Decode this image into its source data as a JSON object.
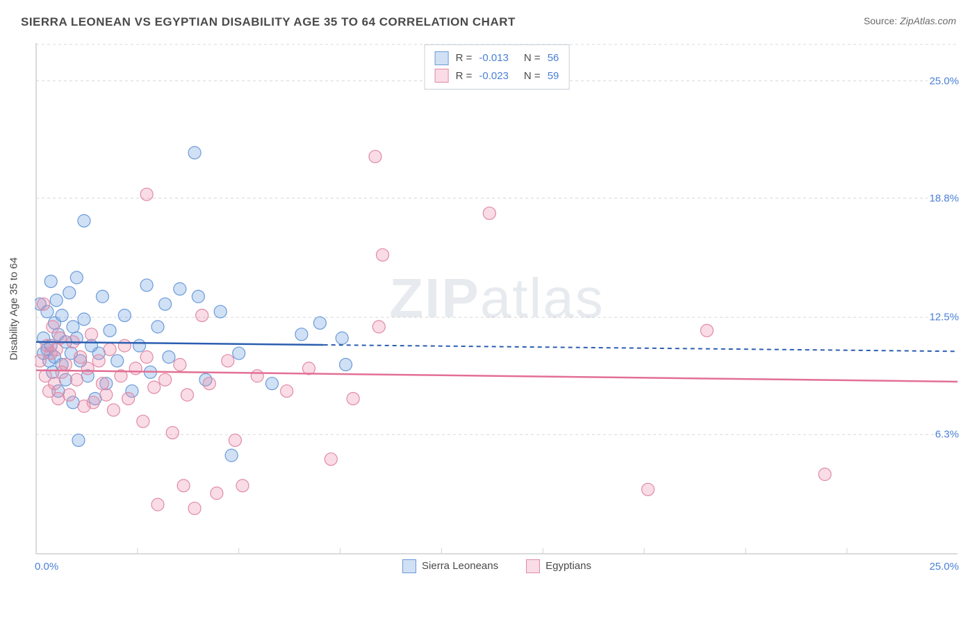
{
  "title": "SIERRA LEONEAN VS EGYPTIAN DISABILITY AGE 35 TO 64 CORRELATION CHART",
  "source_label": "Source:",
  "source_value": "ZipAtlas.com",
  "watermark": {
    "bold": "ZIP",
    "rest": "atlas"
  },
  "chart": {
    "type": "scatter",
    "ylabel": "Disability Age 35 to 64",
    "xlim": [
      0,
      25
    ],
    "ylim": [
      0,
      27
    ],
    "x_tick_labels": {
      "min": "0.0%",
      "max": "25.0%"
    },
    "y_ticks": [
      {
        "v": 6.3,
        "label": "6.3%"
      },
      {
        "v": 12.5,
        "label": "12.5%"
      },
      {
        "v": 18.8,
        "label": "18.8%"
      },
      {
        "v": 25.0,
        "label": "25.0%"
      }
    ],
    "x_minor_ticks": [
      0,
      2.75,
      5.5,
      8.25,
      11.0,
      13.75,
      16.5,
      19.25,
      22.0
    ],
    "background_color": "#ffffff",
    "grid_color": "#d8d8d8",
    "axis_color": "#cfcfcf",
    "marker_radius": 9,
    "marker_stroke_width": 1.2,
    "series": [
      {
        "id": "sierra_leoneans",
        "label": "Sierra Leoneans",
        "fill": "rgba(120,165,225,0.35)",
        "stroke": "#6a9ad8",
        "line_color": "#2a5db0",
        "R": "-0.013",
        "N": "56",
        "trend": {
          "y_at_xmin": 11.2,
          "y_at_xmax": 10.7,
          "solid_until_x": 7.8
        },
        "points": [
          [
            0.1,
            13.2
          ],
          [
            0.2,
            10.6
          ],
          [
            0.2,
            11.4
          ],
          [
            0.3,
            10.8
          ],
          [
            0.3,
            12.8
          ],
          [
            0.35,
            10.2
          ],
          [
            0.4,
            11.0
          ],
          [
            0.4,
            14.4
          ],
          [
            0.45,
            9.6
          ],
          [
            0.5,
            10.4
          ],
          [
            0.5,
            12.2
          ],
          [
            0.55,
            13.4
          ],
          [
            0.6,
            8.6
          ],
          [
            0.6,
            11.6
          ],
          [
            0.7,
            10.0
          ],
          [
            0.7,
            12.6
          ],
          [
            0.8,
            9.2
          ],
          [
            0.8,
            11.2
          ],
          [
            0.9,
            13.8
          ],
          [
            0.95,
            10.6
          ],
          [
            1.0,
            8.0
          ],
          [
            1.0,
            12.0
          ],
          [
            1.1,
            11.4
          ],
          [
            1.1,
            14.6
          ],
          [
            1.15,
            6.0
          ],
          [
            1.2,
            10.2
          ],
          [
            1.3,
            17.6
          ],
          [
            1.3,
            12.4
          ],
          [
            1.4,
            9.4
          ],
          [
            1.5,
            11.0
          ],
          [
            1.6,
            8.2
          ],
          [
            1.7,
            10.6
          ],
          [
            1.8,
            13.6
          ],
          [
            1.9,
            9.0
          ],
          [
            2.0,
            11.8
          ],
          [
            2.2,
            10.2
          ],
          [
            2.4,
            12.6
          ],
          [
            2.6,
            8.6
          ],
          [
            2.8,
            11.0
          ],
          [
            3.0,
            14.2
          ],
          [
            3.1,
            9.6
          ],
          [
            3.3,
            12.0
          ],
          [
            3.5,
            13.2
          ],
          [
            3.6,
            10.4
          ],
          [
            3.9,
            14.0
          ],
          [
            4.3,
            21.2
          ],
          [
            4.4,
            13.6
          ],
          [
            4.6,
            9.2
          ],
          [
            5.0,
            12.8
          ],
          [
            5.3,
            5.2
          ],
          [
            5.5,
            10.6
          ],
          [
            6.4,
            9.0
          ],
          [
            7.2,
            11.6
          ],
          [
            7.7,
            12.2
          ],
          [
            8.3,
            11.4
          ],
          [
            8.4,
            10.0
          ]
        ]
      },
      {
        "id": "egyptians",
        "label": "Egyptians",
        "fill": "rgba(235,140,170,0.30)",
        "stroke": "#e08aa5",
        "line_color": "#e36f94",
        "R": "-0.023",
        "N": "59",
        "trend": {
          "y_at_xmin": 9.7,
          "y_at_xmax": 9.1,
          "solid_until_x": 25
        },
        "points": [
          [
            0.1,
            10.2
          ],
          [
            0.2,
            13.2
          ],
          [
            0.25,
            9.4
          ],
          [
            0.3,
            11.0
          ],
          [
            0.35,
            8.6
          ],
          [
            0.4,
            10.6
          ],
          [
            0.45,
            12.0
          ],
          [
            0.5,
            9.0
          ],
          [
            0.55,
            10.8
          ],
          [
            0.6,
            8.2
          ],
          [
            0.65,
            11.4
          ],
          [
            0.7,
            9.6
          ],
          [
            0.8,
            10.0
          ],
          [
            0.9,
            8.4
          ],
          [
            1.0,
            11.2
          ],
          [
            1.1,
            9.2
          ],
          [
            1.2,
            10.4
          ],
          [
            1.3,
            7.8
          ],
          [
            1.4,
            9.8
          ],
          [
            1.5,
            11.6
          ],
          [
            1.55,
            8.0
          ],
          [
            1.7,
            10.2
          ],
          [
            1.8,
            9.0
          ],
          [
            1.9,
            8.4
          ],
          [
            2.0,
            10.8
          ],
          [
            2.1,
            7.6
          ],
          [
            2.3,
            9.4
          ],
          [
            2.4,
            11.0
          ],
          [
            2.5,
            8.2
          ],
          [
            2.7,
            9.8
          ],
          [
            2.9,
            7.0
          ],
          [
            3.0,
            10.4
          ],
          [
            3.0,
            19.0
          ],
          [
            3.2,
            8.8
          ],
          [
            3.3,
            2.6
          ],
          [
            3.5,
            9.2
          ],
          [
            3.7,
            6.4
          ],
          [
            3.9,
            10.0
          ],
          [
            4.0,
            3.6
          ],
          [
            4.1,
            8.4
          ],
          [
            4.3,
            2.4
          ],
          [
            4.5,
            12.6
          ],
          [
            4.7,
            9.0
          ],
          [
            4.9,
            3.2
          ],
          [
            5.2,
            10.2
          ],
          [
            5.4,
            6.0
          ],
          [
            5.6,
            3.6
          ],
          [
            6.0,
            9.4
          ],
          [
            6.8,
            8.6
          ],
          [
            7.4,
            9.8
          ],
          [
            8.0,
            5.0
          ],
          [
            8.6,
            8.2
          ],
          [
            9.2,
            21.0
          ],
          [
            9.3,
            12.0
          ],
          [
            9.4,
            15.8
          ],
          [
            12.3,
            18.0
          ],
          [
            16.6,
            3.4
          ],
          [
            18.2,
            11.8
          ],
          [
            21.4,
            4.2
          ]
        ]
      }
    ]
  }
}
